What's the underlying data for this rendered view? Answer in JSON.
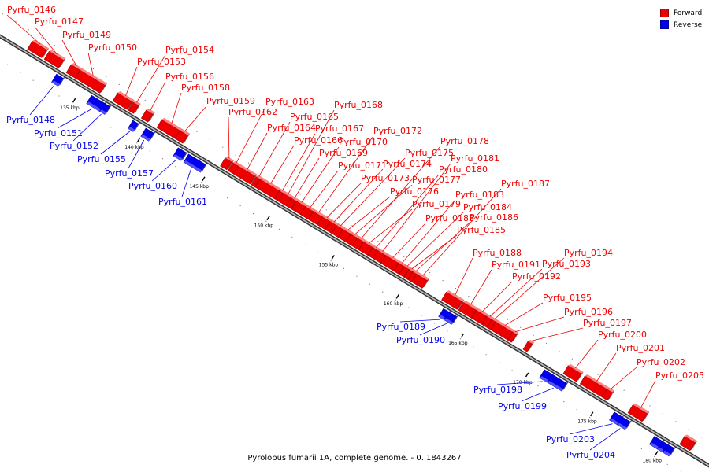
{
  "caption": "Pyrolobus fumarii 1A, complete genome. - 0..1843267",
  "legend": [
    {
      "label": "Forward",
      "color": "#ee0000"
    },
    {
      "label": "Reverse",
      "color": "#0000ee"
    }
  ],
  "colors": {
    "forward": "#ee0000",
    "reverse": "#0000ee",
    "axis": "#555555"
  },
  "genome": {
    "start_kbp": 130.6,
    "end_kbp": 181.8
  },
  "ticks": [
    "135 kbp",
    "140 kbp",
    "145 kbp",
    "150 kbp",
    "155 kbp",
    "160 kbp",
    "165 kbp",
    "170 kbp",
    "175 kbp",
    "180 kbp"
  ],
  "genes": [
    {
      "name": "Pyrfu_0146",
      "strand": "forward",
      "start_kbp": 130.6,
      "end_kbp": 131.7
    },
    {
      "name": "Pyrfu_0147",
      "strand": "forward",
      "start_kbp": 131.9,
      "end_kbp": 133.0
    },
    {
      "name": "Pyrfu_0148",
      "strand": "reverse",
      "start_kbp": 133.1,
      "end_kbp": 133.6
    },
    {
      "name": "Pyrfu_0149",
      "strand": "forward",
      "start_kbp": 133.6,
      "end_kbp": 134.3
    },
    {
      "name": "Pyrfu_0150",
      "strand": "forward",
      "start_kbp": 134.3,
      "end_kbp": 136.2
    },
    {
      "name": "Pyrfu_0151",
      "strand": "reverse",
      "start_kbp": 135.8,
      "end_kbp": 136.8
    },
    {
      "name": "Pyrfu_0152",
      "strand": "reverse",
      "start_kbp": 136.8,
      "end_kbp": 137.2
    },
    {
      "name": "Pyrfu_0153",
      "strand": "forward",
      "start_kbp": 137.2,
      "end_kbp": 138.3
    },
    {
      "name": "Pyrfu_0154",
      "strand": "forward",
      "start_kbp": 138.4,
      "end_kbp": 138.8
    },
    {
      "name": "Pyrfu_0155",
      "strand": "reverse",
      "start_kbp": 139.0,
      "end_kbp": 139.4
    },
    {
      "name": "Pyrfu_0156",
      "strand": "forward",
      "start_kbp": 139.4,
      "end_kbp": 139.9
    },
    {
      "name": "Pyrfu_0157",
      "strand": "reverse",
      "start_kbp": 140.0,
      "end_kbp": 140.6
    },
    {
      "name": "Pyrfu_0158",
      "strand": "forward",
      "start_kbp": 140.6,
      "end_kbp": 142.0
    },
    {
      "name": "Pyrfu_0159",
      "strand": "forward",
      "start_kbp": 142.0,
      "end_kbp": 142.6
    },
    {
      "name": "Pyrfu_0160",
      "strand": "reverse",
      "start_kbp": 142.5,
      "end_kbp": 143.1
    },
    {
      "name": "Pyrfu_0161",
      "strand": "reverse",
      "start_kbp": 143.3,
      "end_kbp": 144.6
    },
    {
      "name": "Pyrfu_0162",
      "strand": "forward",
      "start_kbp": 145.5,
      "end_kbp": 146.0
    },
    {
      "name": "Pyrfu_0163",
      "strand": "forward",
      "start_kbp": 146.1,
      "end_kbp": 146.5
    },
    {
      "name": "Pyrfu_0164",
      "strand": "forward",
      "start_kbp": 146.5,
      "end_kbp": 147.8
    },
    {
      "name": "Pyrfu_0165",
      "strand": "forward",
      "start_kbp": 147.9,
      "end_kbp": 148.2
    },
    {
      "name": "Pyrfu_0166",
      "strand": "forward",
      "start_kbp": 148.2,
      "end_kbp": 149.7
    },
    {
      "name": "Pyrfu_0167",
      "strand": "forward",
      "start_kbp": 149.7,
      "end_kbp": 150.0
    },
    {
      "name": "Pyrfu_0168",
      "strand": "forward",
      "start_kbp": 150.0,
      "end_kbp": 150.6
    },
    {
      "name": "Pyrfu_0169",
      "strand": "forward",
      "start_kbp": 150.6,
      "end_kbp": 151.0
    },
    {
      "name": "Pyrfu_0170",
      "strand": "forward",
      "start_kbp": 151.0,
      "end_kbp": 151.7
    },
    {
      "name": "Pyrfu_0171",
      "strand": "forward",
      "start_kbp": 151.7,
      "end_kbp": 152.3
    },
    {
      "name": "Pyrfu_0172",
      "strand": "forward",
      "start_kbp": 152.3,
      "end_kbp": 153.0
    },
    {
      "name": "Pyrfu_0173",
      "strand": "forward",
      "start_kbp": 153.0,
      "end_kbp": 153.6
    },
    {
      "name": "Pyrfu_0174",
      "strand": "forward",
      "start_kbp": 153.6,
      "end_kbp": 154.1
    },
    {
      "name": "Pyrfu_0175",
      "strand": "forward",
      "start_kbp": 154.1,
      "end_kbp": 154.6
    },
    {
      "name": "Pyrfu_0176",
      "strand": "forward",
      "start_kbp": 154.6,
      "end_kbp": 155.2
    },
    {
      "name": "Pyrfu_0177",
      "strand": "forward",
      "start_kbp": 155.2,
      "end_kbp": 155.7
    },
    {
      "name": "Pyrfu_0178",
      "strand": "forward",
      "start_kbp": 155.7,
      "end_kbp": 156.2
    },
    {
      "name": "Pyrfu_0179",
      "strand": "forward",
      "start_kbp": 156.2,
      "end_kbp": 156.9
    },
    {
      "name": "Pyrfu_0180",
      "strand": "forward",
      "start_kbp": 156.9,
      "end_kbp": 157.3
    },
    {
      "name": "Pyrfu_0181",
      "strand": "forward",
      "start_kbp": 157.3,
      "end_kbp": 157.9
    },
    {
      "name": "Pyrfu_0182",
      "strand": "forward",
      "start_kbp": 157.9,
      "end_kbp": 158.9
    },
    {
      "name": "Pyrfu_0183",
      "strand": "forward",
      "start_kbp": 158.9,
      "end_kbp": 159.3
    },
    {
      "name": "Pyrfu_0184",
      "strand": "forward",
      "start_kbp": 159.3,
      "end_kbp": 159.7
    },
    {
      "name": "Pyrfu_0185",
      "strand": "forward",
      "start_kbp": 159.7,
      "end_kbp": 160.0
    },
    {
      "name": "Pyrfu_0186",
      "strand": "forward",
      "start_kbp": 160.0,
      "end_kbp": 160.3
    },
    {
      "name": "Pyrfu_0187",
      "strand": "forward",
      "start_kbp": 160.3,
      "end_kbp": 161.1
    },
    {
      "name": "Pyrfu_0188",
      "strand": "forward",
      "start_kbp": 162.6,
      "end_kbp": 163.8
    },
    {
      "name": "Pyrfu_0189",
      "strand": "reverse",
      "start_kbp": 163.0,
      "end_kbp": 163.4
    },
    {
      "name": "Pyrfu_0190",
      "strand": "reverse",
      "start_kbp": 163.4,
      "end_kbp": 164.0
    },
    {
      "name": "Pyrfu_0191",
      "strand": "forward",
      "start_kbp": 163.9,
      "end_kbp": 164.9
    },
    {
      "name": "Pyrfu_0192",
      "strand": "forward",
      "start_kbp": 164.9,
      "end_kbp": 165.7
    },
    {
      "name": "Pyrfu_0193",
      "strand": "forward",
      "start_kbp": 165.7,
      "end_kbp": 166.1
    },
    {
      "name": "Pyrfu_0194",
      "strand": "forward",
      "start_kbp": 166.1,
      "end_kbp": 166.4
    },
    {
      "name": "Pyrfu_0195",
      "strand": "forward",
      "start_kbp": 166.4,
      "end_kbp": 167.7
    },
    {
      "name": "Pyrfu_0196",
      "strand": "forward",
      "start_kbp": 167.7,
      "end_kbp": 168.0
    },
    {
      "name": "Pyrfu_0197",
      "strand": "forward",
      "start_kbp": 168.9,
      "end_kbp": 169.2
    },
    {
      "name": "Pyrfu_0198",
      "strand": "reverse",
      "start_kbp": 170.8,
      "end_kbp": 171.4
    },
    {
      "name": "Pyrfu_0199",
      "strand": "reverse",
      "start_kbp": 171.4,
      "end_kbp": 172.5
    },
    {
      "name": "Pyrfu_0200",
      "strand": "forward",
      "start_kbp": 172.0,
      "end_kbp": 173.0
    },
    {
      "name": "Pyrfu_0201",
      "strand": "forward",
      "start_kbp": 173.3,
      "end_kbp": 175.0
    },
    {
      "name": "Pyrfu_0202",
      "strand": "forward",
      "start_kbp": 175.0,
      "end_kbp": 175.4
    },
    {
      "name": "Pyrfu_0203",
      "strand": "reverse",
      "start_kbp": 176.2,
      "end_kbp": 176.8
    },
    {
      "name": "Pyrfu_0204",
      "strand": "reverse",
      "start_kbp": 176.8,
      "end_kbp": 177.4
    },
    {
      "name": "Pyrfu_0205",
      "strand": "forward",
      "start_kbp": 177.0,
      "end_kbp": 178.1
    }
  ],
  "extra_reverse_genes": [
    {
      "strand": "reverse",
      "start_kbp": 179.3,
      "end_kbp": 179.9
    },
    {
      "strand": "reverse",
      "start_kbp": 179.9,
      "end_kbp": 180.3
    },
    {
      "strand": "reverse",
      "start_kbp": 180.3,
      "end_kbp": 180.8
    }
  ],
  "extra_forward_genes": [
    {
      "strand": "forward",
      "start_kbp": 181.0,
      "end_kbp": 181.6
    },
    {
      "strand": "forward",
      "start_kbp": 181.6,
      "end_kbp": 181.8
    }
  ]
}
